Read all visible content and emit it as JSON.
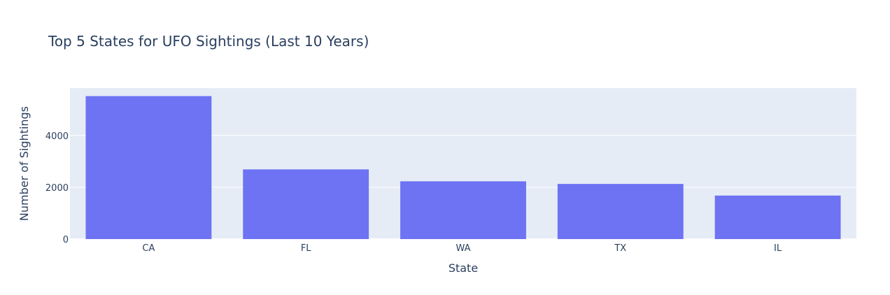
{
  "chart_data": {
    "type": "bar",
    "title": "Top 5 States for UFO Sightings (Last 10 Years)",
    "xlabel": "State",
    "ylabel": "Number of Sightings",
    "categories": [
      "CA",
      "FL",
      "WA",
      "TX",
      "IL"
    ],
    "values": [
      5520,
      2690,
      2230,
      2130,
      1680
    ],
    "ylim": [
      0,
      5830
    ],
    "yticks": [
      0,
      2000,
      4000
    ],
    "grid": true,
    "legend": "none",
    "colors": {
      "bar": "#6d73f3",
      "plot_background": "#e5ecf6",
      "gridline": "#ffffff",
      "text": "#2a3f5f"
    }
  }
}
